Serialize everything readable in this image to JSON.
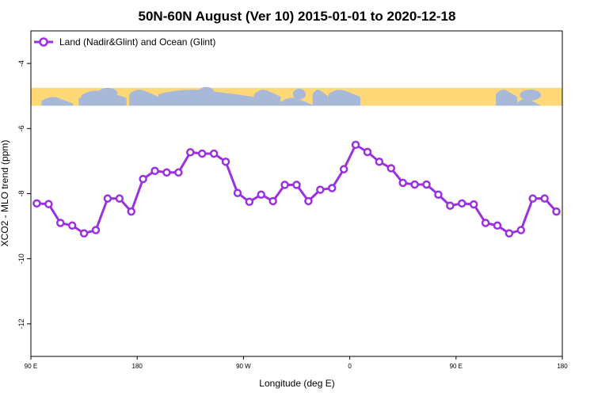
{
  "chart_data": {
    "type": "line",
    "title": "50N-60N August (Ver 10)   2015-01-01 to 2020-12-18",
    "xlabel": "Longitude (deg E)",
    "ylabel": "XCO2 - MLO trend (ppm)",
    "x_ticks": [
      {
        "value": 90,
        "label": "90 E"
      },
      {
        "value": 180,
        "label": "180"
      },
      {
        "value": 270,
        "label": "90 W"
      },
      {
        "value": 360,
        "label": "0"
      },
      {
        "value": 450,
        "label": "90 E"
      },
      {
        "value": 540,
        "label": "180"
      }
    ],
    "y_ticks": [
      -4,
      -6,
      -8,
      -10,
      -12
    ],
    "xlim": [
      90,
      540
    ],
    "ylim": [
      -13,
      -3
    ],
    "grid": false,
    "legend_position": "top-left",
    "series": [
      {
        "name": "Land (Nadir&Glint) and Ocean (Glint)",
        "color": "#9b30e0",
        "x": [
          95,
          105,
          115,
          125,
          135,
          145,
          155,
          165,
          175,
          185,
          195,
          205,
          215,
          225,
          235,
          245,
          255,
          265,
          275,
          285,
          295,
          305,
          315,
          325,
          335,
          345,
          355,
          365,
          375,
          385,
          395,
          405,
          415,
          425,
          435,
          445,
          455,
          465,
          475,
          485,
          495,
          505,
          515,
          525,
          535
        ],
        "y": [
          -8.3,
          -8.32,
          -8.9,
          -8.98,
          -9.22,
          -9.12,
          -8.15,
          -8.15,
          -8.55,
          -7.55,
          -7.3,
          -7.35,
          -7.35,
          -6.73,
          -6.77,
          -6.77,
          -7.02,
          -7.98,
          -8.25,
          -8.03,
          -8.23,
          -7.73,
          -7.73,
          -8.23,
          -7.88,
          -7.83,
          -7.25,
          -6.5,
          -6.72,
          -7.02,
          -7.22,
          -7.67,
          -7.72,
          -7.72,
          -8.03,
          -8.37,
          -8.3,
          -8.33,
          -8.9,
          -8.98,
          -9.22,
          -9.12,
          -8.15,
          -8.15,
          -8.55
        ]
      }
    ],
    "map_strip": {
      "ocean_color": "#a8b8d8",
      "land_color": "#ffd878",
      "y_range": [
        -4.75,
        -5.3
      ]
    }
  }
}
